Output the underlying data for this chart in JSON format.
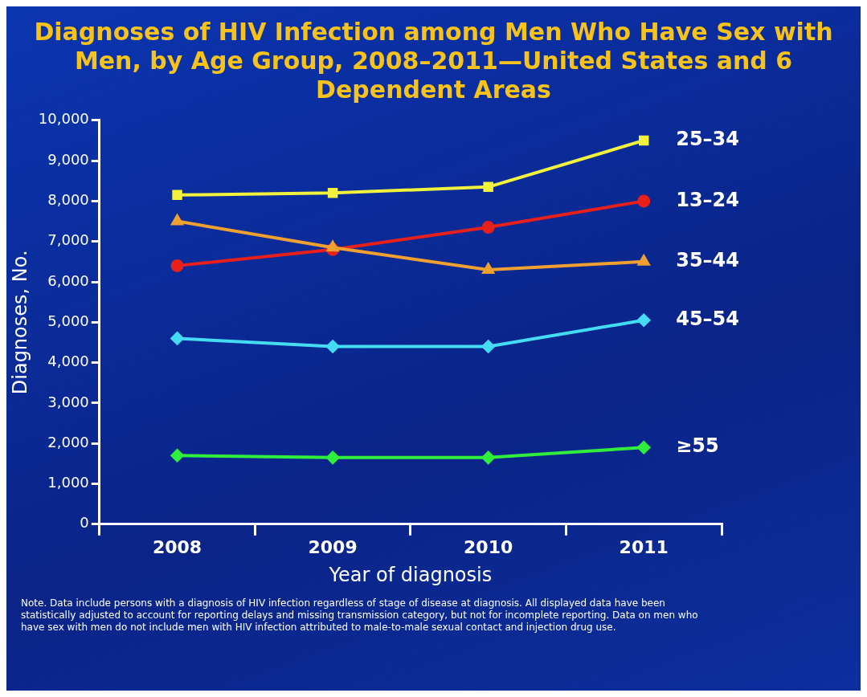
{
  "chart_data": {
    "type": "line",
    "title": "Diagnoses of HIV Infection among Men Who Have Sex with Men, by Age Group, 2008–2011—United States and 6 Dependent Areas",
    "xlabel": "Year of diagnosis",
    "ylabel": "Diagnoses, No.",
    "categories": [
      "2008",
      "2009",
      "2010",
      "2011"
    ],
    "series": [
      {
        "name": "25–34",
        "color": "#f2f23c",
        "marker": "square",
        "values": [
          8150,
          8200,
          8350,
          9500
        ]
      },
      {
        "name": "13–24",
        "color": "#e8201c",
        "marker": "circle",
        "values": [
          6400,
          6800,
          7350,
          8000
        ]
      },
      {
        "name": "35–44",
        "color": "#f0a030",
        "marker": "triangle",
        "values": [
          7500,
          6850,
          6300,
          6500
        ]
      },
      {
        "name": "45–54",
        "color": "#44dcf2",
        "marker": "diamond",
        "values": [
          4600,
          4400,
          4400,
          5050
        ]
      },
      {
        "name": "≥55",
        "color": "#30ee3c",
        "marker": "diamond",
        "values": [
          1700,
          1650,
          1650,
          1900
        ]
      }
    ],
    "ylim": [
      0,
      10000
    ],
    "yticks": [
      0,
      {
        "value": 1000,
        "label": "1,000"
      },
      {
        "value": 2000,
        "label": "2,000"
      },
      {
        "value": 3000,
        "label": "3,000"
      },
      {
        "value": 4000,
        "label": "4,000"
      },
      {
        "value": 5000,
        "label": "5,000"
      },
      {
        "value": 6000,
        "label": "6,000"
      },
      {
        "value": 7000,
        "label": "7,000"
      },
      {
        "value": 8000,
        "label": "8,000"
      },
      {
        "value": 9000,
        "label": "9,000"
      },
      {
        "value": 10000,
        "label": "10,000"
      }
    ],
    "grid": false,
    "legend": false,
    "annotations": [
      "Note. Data include persons with a diagnosis of HIV infection regardless of stage of disease at diagnosis. All displayed data have been statistically adjusted to account for reporting delays and missing transmission category, but not for incomplete reporting. Data on men who have sex with men do not include men with HIV infection attributed to male-to-male sexual contact and injection drug use."
    ]
  }
}
